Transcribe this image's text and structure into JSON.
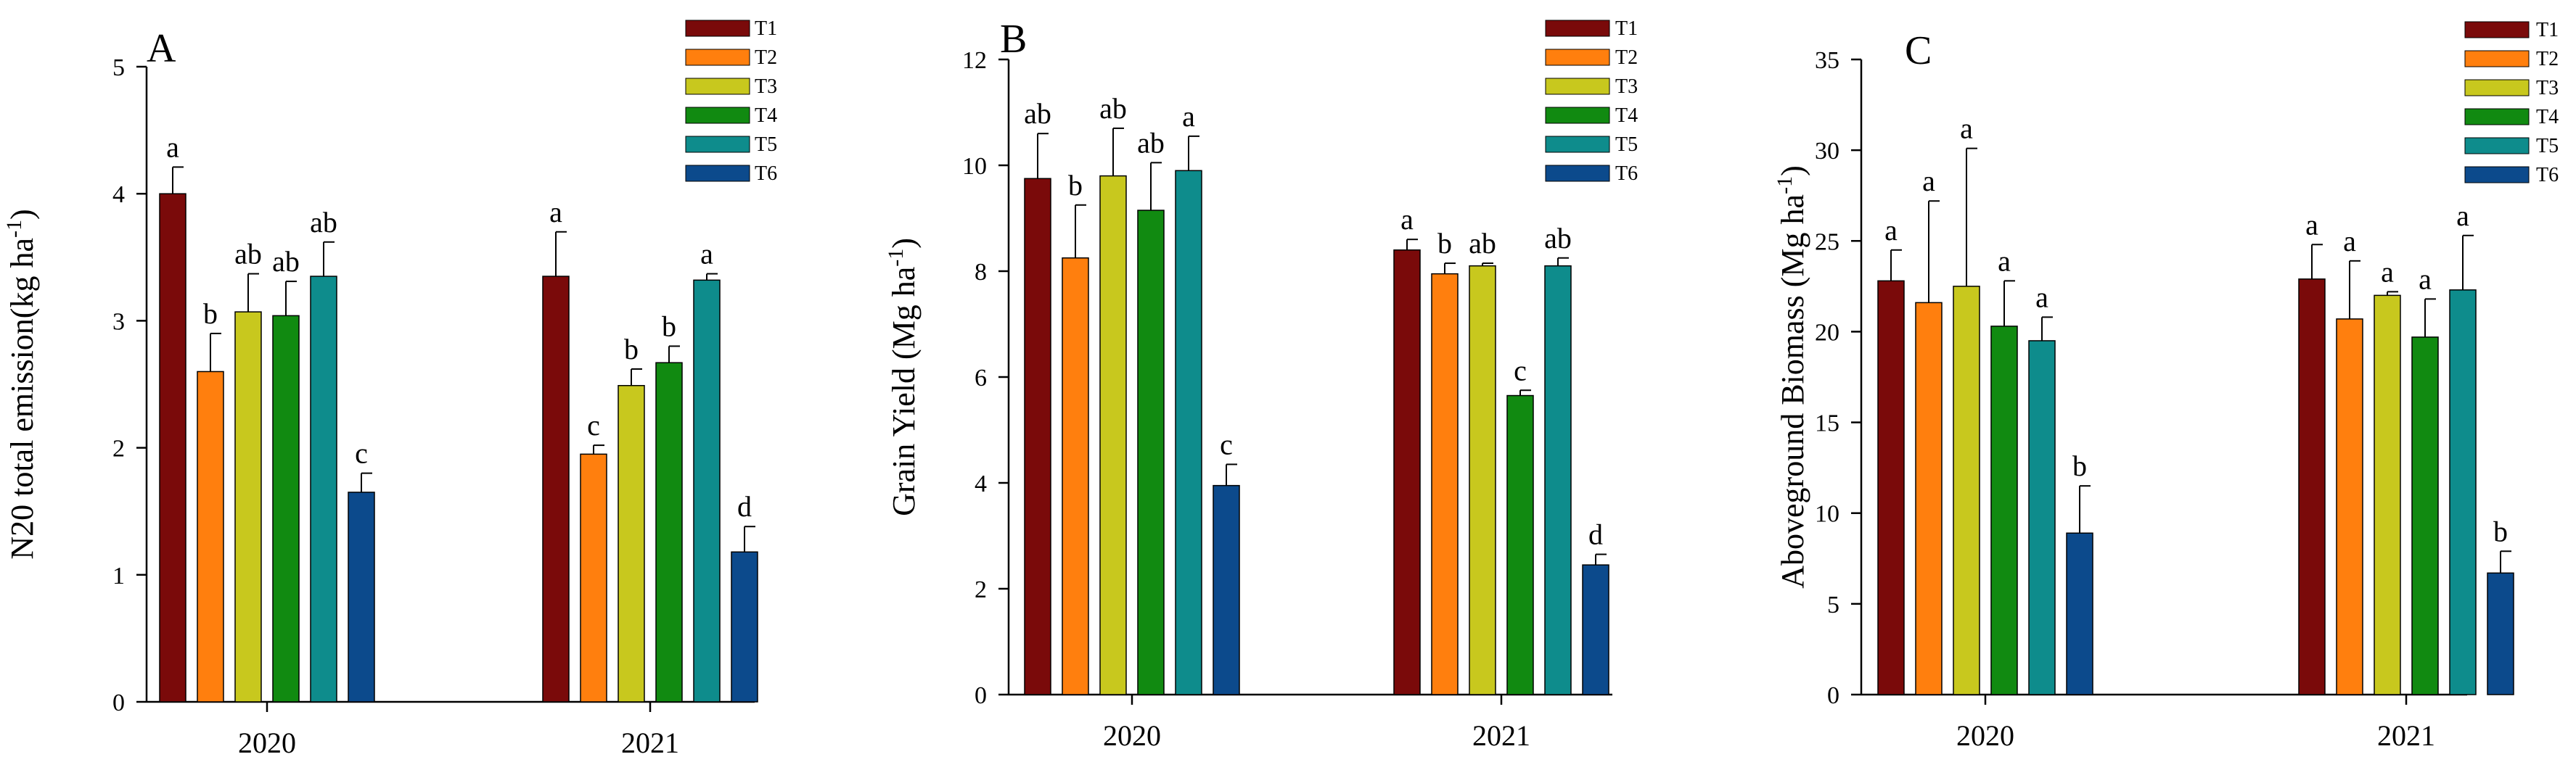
{
  "figure": {
    "series_names": [
      "T1",
      "T2",
      "T3",
      "T4",
      "T5",
      "T6"
    ],
    "colors": [
      "#7A0A0A",
      "#FF7F0E",
      "#C8C81E",
      "#118A11",
      "#0E8C8C",
      "#0C4A8C"
    ]
  },
  "chart_data": [
    {
      "type": "bar",
      "panel": "A",
      "title": "",
      "xlabel": "",
      "ylabel": "N20 total emission(kg ha-1)",
      "ylabel_main": "N20 total emission(kg ha",
      "ylabel_sup": "-1",
      "ylabel_end": ")",
      "categories": [
        "2020",
        "2021"
      ],
      "ylim": [
        0,
        5
      ],
      "yticks": [
        0,
        1,
        2,
        3,
        4,
        5
      ],
      "series": [
        {
          "name": "T1",
          "values": [
            4.0,
            3.35
          ],
          "errors": [
            0.21,
            0.35
          ],
          "letters": [
            "a",
            "a"
          ]
        },
        {
          "name": "T2",
          "values": [
            2.6,
            1.95
          ],
          "errors": [
            0.3,
            0.07
          ],
          "letters": [
            "b",
            "c"
          ]
        },
        {
          "name": "T3",
          "values": [
            3.07,
            2.49
          ],
          "errors": [
            0.3,
            0.13
          ],
          "letters": [
            "ab",
            "b"
          ]
        },
        {
          "name": "T4",
          "values": [
            3.04,
            2.67
          ],
          "errors": [
            0.27,
            0.13
          ],
          "letters": [
            "ab",
            "b"
          ]
        },
        {
          "name": "T5",
          "values": [
            3.35,
            3.32
          ],
          "errors": [
            0.27,
            0.05
          ],
          "letters": [
            "ab",
            "a"
          ]
        },
        {
          "name": "T6",
          "values": [
            1.65,
            1.18
          ],
          "errors": [
            0.15,
            0.2
          ],
          "letters": [
            "c",
            "d"
          ]
        }
      ]
    },
    {
      "type": "bar",
      "panel": "B",
      "title": "",
      "xlabel": "",
      "ylabel": "Grain Yield (Mg ha-1)",
      "ylabel_main": "Grain Yield (Mg ha",
      "ylabel_sup": "-1",
      "ylabel_end": ")",
      "categories": [
        "2020",
        "2021"
      ],
      "ylim": [
        0,
        12
      ],
      "yticks": [
        0,
        2,
        4,
        6,
        8,
        10,
        12
      ],
      "series": [
        {
          "name": "T1",
          "values": [
            9.75,
            8.4
          ],
          "errors": [
            0.85,
            0.2
          ],
          "letters": [
            "ab",
            "a"
          ]
        },
        {
          "name": "T2",
          "values": [
            8.25,
            7.95
          ],
          "errors": [
            1.0,
            0.2
          ],
          "letters": [
            "b",
            "b"
          ]
        },
        {
          "name": "T3",
          "values": [
            9.8,
            8.1
          ],
          "errors": [
            0.9,
            0.05
          ],
          "letters": [
            "ab",
            "ab"
          ]
        },
        {
          "name": "T4",
          "values": [
            9.15,
            5.65
          ],
          "errors": [
            0.9,
            0.1
          ],
          "letters": [
            "ab",
            "c"
          ]
        },
        {
          "name": "T5",
          "values": [
            9.9,
            8.1
          ],
          "errors": [
            0.65,
            0.15
          ],
          "letters": [
            "a",
            "ab"
          ]
        },
        {
          "name": "T6",
          "values": [
            3.95,
            2.45
          ],
          "errors": [
            0.4,
            0.2
          ],
          "letters": [
            "c",
            "d"
          ]
        }
      ]
    },
    {
      "type": "bar",
      "panel": "C",
      "title": "",
      "xlabel": "",
      "ylabel": "Aboveground Biomass (Mg ha-1)",
      "ylabel_main": "Aboveground Biomass (Mg ha",
      "ylabel_sup": "-1",
      "ylabel_end": ")",
      "categories": [
        "2020",
        "2021"
      ],
      "ylim": [
        0,
        35
      ],
      "yticks": [
        0,
        5,
        10,
        15,
        20,
        25,
        30,
        35
      ],
      "series": [
        {
          "name": "T1",
          "values": [
            22.8,
            22.9
          ],
          "errors": [
            1.7,
            1.9
          ],
          "letters": [
            "a",
            "a"
          ]
        },
        {
          "name": "T2",
          "values": [
            21.6,
            20.7
          ],
          "errors": [
            5.6,
            3.2
          ],
          "letters": [
            "a",
            "a"
          ]
        },
        {
          "name": "T3",
          "values": [
            22.5,
            22.0
          ],
          "errors": [
            7.6,
            0.2
          ],
          "letters": [
            "a",
            "a"
          ]
        },
        {
          "name": "T4",
          "values": [
            20.3,
            19.7
          ],
          "errors": [
            2.5,
            2.1
          ],
          "letters": [
            "a",
            "a"
          ]
        },
        {
          "name": "T5",
          "values": [
            19.5,
            22.3
          ],
          "errors": [
            1.3,
            3.0
          ],
          "letters": [
            "a",
            "a"
          ]
        },
        {
          "name": "T6",
          "values": [
            8.9,
            6.7
          ],
          "errors": [
            2.6,
            1.2
          ],
          "letters": [
            "b",
            "b"
          ]
        }
      ]
    }
  ]
}
